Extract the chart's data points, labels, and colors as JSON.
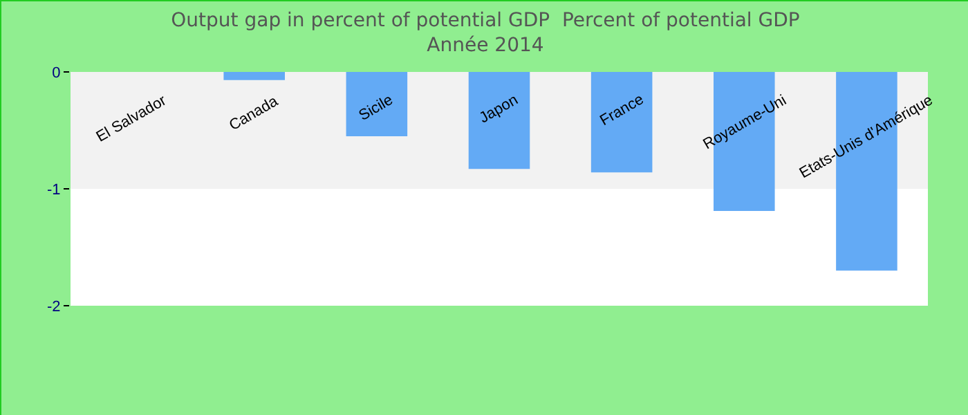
{
  "chart_data": {
    "type": "bar",
    "title": "Output gap in percent of potential GDP  Percent of potential GDP",
    "subtitle": "Année 2014",
    "categories": [
      "El Salvador",
      "Canada",
      "Sicile",
      "Japon",
      "France",
      "Royaume-Uni",
      "Etats-Unis d'Amérique"
    ],
    "values": [
      0,
      -0.07,
      -0.55,
      -0.83,
      -0.86,
      -1.19,
      -1.7
    ],
    "color": "#63aaf5",
    "ylim": [
      -2,
      0
    ],
    "yticks": [
      -2,
      -1,
      0
    ],
    "grid": false,
    "bands": [
      {
        "axis": "y",
        "from": -1,
        "to": 0,
        "color": "#f2f2f2"
      }
    ]
  }
}
